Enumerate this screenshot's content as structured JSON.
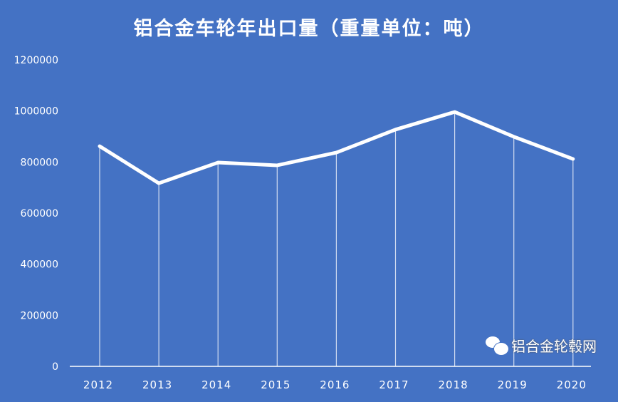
{
  "chart_data": {
    "type": "line",
    "title": "铝合金车轮年出口量（重量单位：吨）",
    "xlabel": "",
    "ylabel": "",
    "categories": [
      "2012",
      "2013",
      "2014",
      "2015",
      "2016",
      "2017",
      "2018",
      "2019",
      "2020"
    ],
    "values": [
      862000,
      717000,
      798000,
      787000,
      837000,
      927000,
      996000,
      899000,
      812000
    ],
    "ylim": [
      0,
      1200000
    ],
    "yticks": [
      0,
      200000,
      400000,
      600000,
      800000,
      1000000,
      1200000
    ],
    "grid": false,
    "drop_lines": true,
    "colors": {
      "background": "#4472C4",
      "line": "#FFFFFF"
    }
  },
  "watermark": {
    "text": "铝合金轮毂网",
    "icon": "wechat-icon"
  }
}
